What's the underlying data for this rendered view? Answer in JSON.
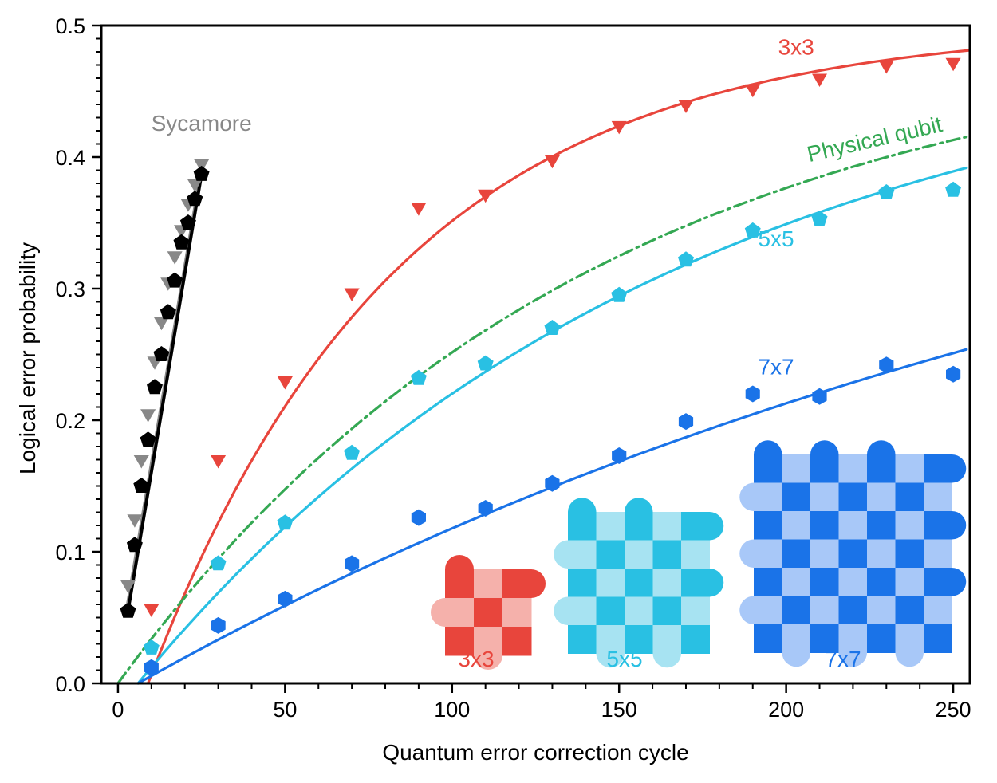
{
  "chart_data": {
    "type": "scatter",
    "xlabel": "Quantum error correction cycle",
    "ylabel": "Logical error probability",
    "xlim": [
      -5,
      255
    ],
    "ylim": [
      0,
      0.5
    ],
    "xticks": [
      "0",
      "50",
      "100",
      "150",
      "200",
      "250"
    ],
    "yticks": [
      "0.0",
      "0.1",
      "0.2",
      "0.3",
      "0.4",
      "0.5"
    ],
    "grid": false,
    "series": [
      {
        "name": "Sycamore",
        "color": "#888888",
        "marker": "triangle-down",
        "label_x": 25,
        "label_y": 0.42,
        "x": [
          3,
          5,
          7,
          9,
          11,
          13,
          15,
          17,
          19,
          21,
          23,
          25
        ],
        "y": [
          0.075,
          0.125,
          0.17,
          0.205,
          0.245,
          0.275,
          0.305,
          0.325,
          0.345,
          0.365,
          0.38,
          0.395
        ],
        "fit": [
          [
            3,
            0.06
          ],
          [
            25,
            0.39
          ]
        ]
      },
      {
        "name": "",
        "color": "#000000",
        "marker": "pentagon",
        "x": [
          3,
          5,
          7,
          9,
          11,
          13,
          15,
          17,
          19,
          21,
          23,
          25
        ],
        "y": [
          0.055,
          0.105,
          0.15,
          0.185,
          0.225,
          0.25,
          0.282,
          0.306,
          0.335,
          0.35,
          0.368,
          0.387
        ],
        "fit": [
          [
            3,
            0.055
          ],
          [
            25,
            0.387
          ]
        ]
      },
      {
        "name": "3x3",
        "color": "#e8453c",
        "marker": "triangle-down",
        "label_x": 203,
        "label_y": 0.478,
        "x": [
          10,
          30,
          50,
          70,
          90,
          110,
          130,
          150,
          170,
          190,
          210,
          230,
          250
        ],
        "y": [
          0.057,
          0.17,
          0.23,
          0.297,
          0.362,
          0.372,
          0.398,
          0.424,
          0.44,
          0.452,
          0.46,
          0.47,
          0.472
        ],
        "fit_params": {
          "a": 0.5,
          "tau": 75,
          "x0": 9
        }
      },
      {
        "name": "Physical qubit",
        "color": "#34a853",
        "marker": "none",
        "dash": "dashdot",
        "label_x": 227,
        "label_y": 0.408,
        "fit_params": {
          "a": 0.5,
          "tau": 143,
          "x0": 0
        }
      },
      {
        "name": "5x5",
        "color": "#29c0e3",
        "marker": "pentagon",
        "label_x": 197,
        "label_y": 0.332,
        "x": [
          10,
          30,
          50,
          70,
          90,
          110,
          130,
          150,
          170,
          190,
          210,
          230,
          250
        ],
        "y": [
          0.027,
          0.091,
          0.122,
          0.175,
          0.232,
          0.243,
          0.27,
          0.295,
          0.322,
          0.344,
          0.353,
          0.373,
          0.375
        ],
        "fit_params": {
          "a": 0.5,
          "tau": 162,
          "x0": 6
        }
      },
      {
        "name": "7x7",
        "color": "#1a73e8",
        "marker": "hexagon",
        "label_x": 197,
        "label_y": 0.235,
        "x": [
          10,
          30,
          50,
          70,
          90,
          110,
          130,
          150,
          170,
          190,
          210,
          230,
          250
        ],
        "y": [
          0.012,
          0.044,
          0.064,
          0.091,
          0.126,
          0.133,
          0.152,
          0.173,
          0.199,
          0.22,
          0.218,
          0.242,
          0.235
        ],
        "fit_params": {
          "a": 0.5,
          "tau": 350,
          "x0": 6
        }
      }
    ],
    "insets": [
      {
        "label": "3x3",
        "color": "#e8453c",
        "light": "#f5b1ab",
        "n": 3
      },
      {
        "label": "5x5",
        "color": "#29c0e3",
        "light": "#a7e3f2",
        "n": 5
      },
      {
        "label": "7x7",
        "color": "#1a73e8",
        "light": "#a8c8f8",
        "n": 7
      }
    ]
  }
}
